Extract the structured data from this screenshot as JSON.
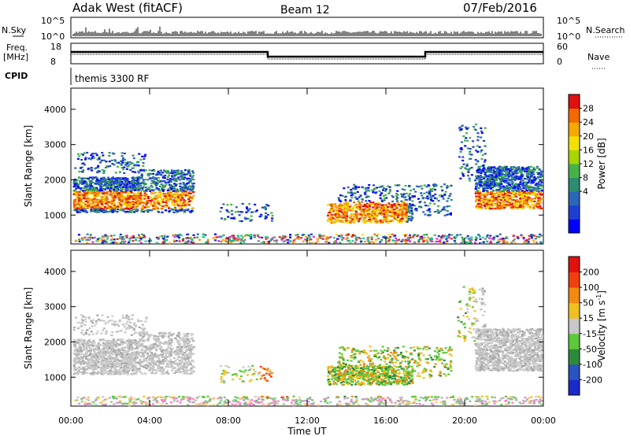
{
  "header": {
    "station": "Adak West (fitACF)",
    "beam": "Beam 12",
    "date": "07/Feb/2016"
  },
  "top_panels": {
    "nsky_label": "N.Sky",
    "nsky_ticks": [
      "10^5",
      "10^0"
    ],
    "nsearch_label": "N.Search",
    "nsearch_ticks": [
      "10^5",
      "10^0"
    ],
    "freq_label": "Freq.",
    "freq_unit": "[MHz]",
    "freq_ticks": [
      "18",
      "8"
    ],
    "nave_label": "Nave",
    "nave_ticks": [
      "60",
      "0"
    ],
    "cpid_label": "CPID",
    "cpid_value": "themis 3300 RF"
  },
  "chart_data": [
    {
      "type": "heatmap",
      "ylabel": "Slant Range [km]",
      "xlabel": "Time UT",
      "x_ticks": [
        "00:00",
        "04:00",
        "08:00",
        "12:00",
        "16:00",
        "20:00",
        "00:00"
      ],
      "x_range_hours": [
        0,
        24
      ],
      "y_ticks": [
        "1000",
        "2000",
        "3000",
        "4000"
      ],
      "ylim": [
        180,
        4600
      ],
      "colorbar": {
        "label": "Power [dB]",
        "ticks": [
          "28",
          "24",
          "20",
          "16",
          "12",
          "8",
          "4"
        ],
        "range": [
          0,
          30
        ],
        "colors": [
          "#0000ff",
          "#1f3fd0",
          "#2c66b8",
          "#2d8c6e",
          "#48b24a",
          "#a8d400",
          "#f2e000",
          "#f5a800",
          "#f06a00",
          "#e01010"
        ]
      }
    },
    {
      "type": "heatmap",
      "ylabel": "Slant Range [km]",
      "xlabel": "Time UT",
      "x_ticks": [
        "00:00",
        "04:00",
        "08:00",
        "12:00",
        "16:00",
        "20:00",
        "00:00"
      ],
      "x_range_hours": [
        0,
        24
      ],
      "y_ticks": [
        "1000",
        "2000",
        "3000",
        "4000"
      ],
      "ylim": [
        180,
        4600
      ],
      "colorbar": {
        "label": "Velocity [m s",
        "label_sup": "-1",
        "label_end": "]",
        "ticks": [
          "200",
          "100",
          "50",
          "15",
          "-15",
          "-50",
          "-100",
          "-200"
        ],
        "colors": [
          "#1a2ac8",
          "#2a52c0",
          "#2e8a3a",
          "#5cc83a",
          "#c8c8c8",
          "#f0c020",
          "#f08a10",
          "#f04010",
          "#e01010"
        ]
      }
    }
  ]
}
